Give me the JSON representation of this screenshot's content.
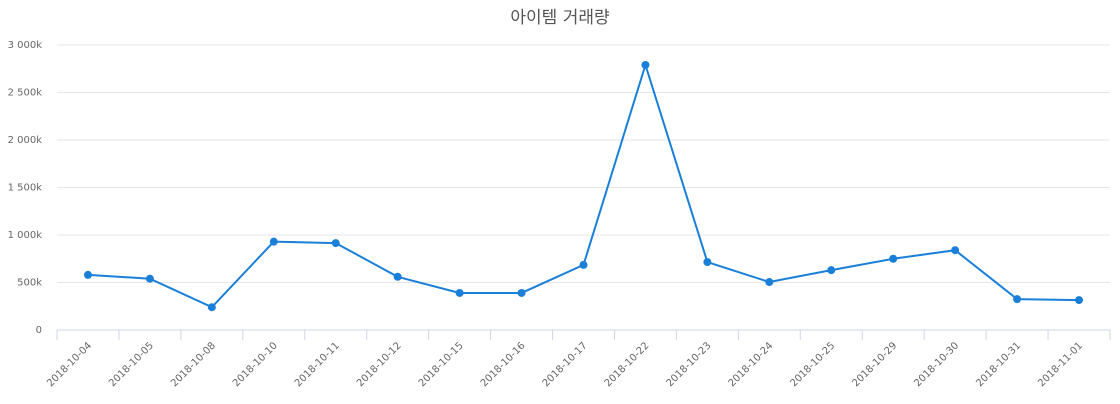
{
  "chart_data": {
    "type": "line",
    "title": "아이템 거래량",
    "categories": [
      "2018-10-04",
      "2018-10-05",
      "2018-10-08",
      "2018-10-10",
      "2018-10-11",
      "2018-10-12",
      "2018-10-15",
      "2018-10-16",
      "2018-10-17",
      "2018-10-22",
      "2018-10-23",
      "2018-10-24",
      "2018-10-25",
      "2018-10-29",
      "2018-10-30",
      "2018-10-31",
      "2018-11-01"
    ],
    "series": [
      {
        "color": "#1a7fd8",
        "values": [
          580000,
          540000,
          240000,
          930000,
          915000,
          560000,
          390000,
          390000,
          685000,
          2790000,
          715000,
          505000,
          630000,
          750000,
          840000,
          325000,
          315000
        ]
      }
    ],
    "ylim": [
      0,
      3000000
    ],
    "yticks": [
      0,
      {
        "value": 500000,
        "label": "500k"
      },
      {
        "value": 1000000,
        "label": "1 000k"
      },
      {
        "value": 1500000,
        "label": "1 500k"
      },
      {
        "value": 2000000,
        "label": "2 000k"
      },
      {
        "value": 2500000,
        "label": "2 500k"
      },
      {
        "value": 3000000,
        "label": "3 000k"
      }
    ],
    "grid": true
  }
}
